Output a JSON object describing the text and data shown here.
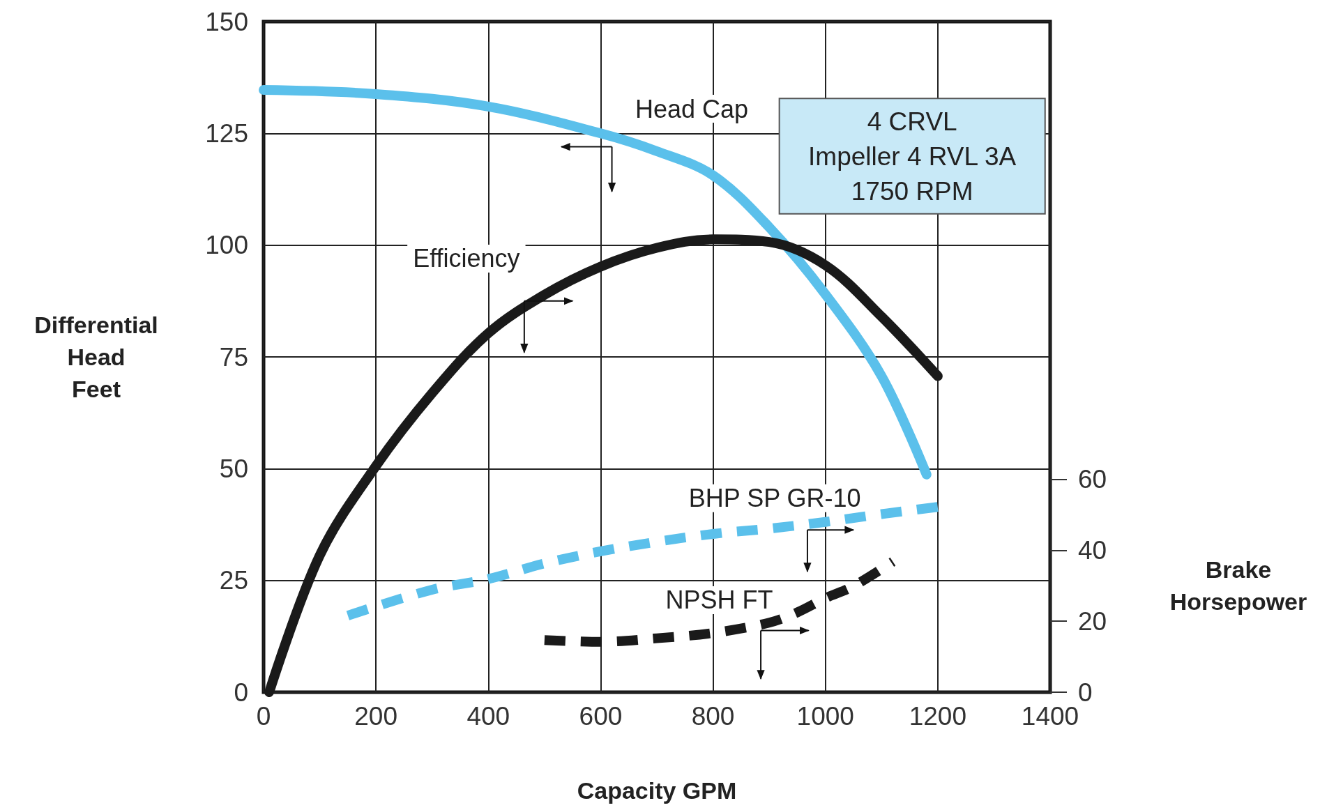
{
  "chart_data": {
    "type": "line",
    "xlabel": "Capacity GPM",
    "ylabel": "Differential\nHead\nFeet",
    "y2label": "Brake\nHorsepower",
    "xlim": [
      0,
      1400
    ],
    "xticks": [
      0,
      200,
      400,
      600,
      800,
      1000,
      1200,
      1400
    ],
    "ylim": [
      0,
      150
    ],
    "yticks": [
      0,
      25,
      50,
      75,
      100,
      125,
      150
    ],
    "y2lim": [
      0,
      189
    ],
    "y2ticks": [
      0,
      20,
      40,
      60
    ],
    "grid": true,
    "legend": false,
    "marker": "none",
    "annotations": [
      "4 CRVL\nImpeller 4 RVL 3A\n1750 RPM"
    ],
    "series": [
      {
        "name": "Head Cap",
        "color": "#5bc0eb",
        "line_style": "solid",
        "x": [
          0,
          200,
          400,
          600,
          700,
          800,
          900,
          1000,
          1100,
          1180
        ],
        "values": [
          134.7,
          133.8,
          131,
          125,
          121,
          115.6,
          104,
          89,
          70.7,
          48.7
        ]
      },
      {
        "name": "Efficiency",
        "color": "#1a1a1a",
        "line_style": "solid",
        "x": [
          10,
          100,
          200,
          300,
          400,
          500,
          600,
          700,
          800,
          900,
          1000,
          1100,
          1200
        ],
        "values": [
          0,
          30.6,
          50.6,
          66.9,
          80.3,
          88.9,
          95.2,
          99.4,
          101.3,
          100.7,
          95.5,
          84,
          70.7
        ]
      },
      {
        "name": "BHP SP GR-10",
        "color": "#5bc0eb",
        "line_style": "dashed",
        "axis": "y2",
        "x": [
          150,
          300,
          400,
          500,
          600,
          700,
          800,
          900,
          1000,
          1100,
          1200
        ],
        "values": [
          21.6,
          28.9,
          31.9,
          36.3,
          39.7,
          42.4,
          44.6,
          46.1,
          48,
          50.2,
          52.2
        ]
      },
      {
        "name": "NPSH FT",
        "color": "#1a1a1a",
        "line_style": "dashed",
        "axis": "y2",
        "x": [
          500,
          600,
          700,
          800,
          900,
          950,
          1000,
          1050,
          1120
        ],
        "values": [
          14.7,
          14.2,
          15.2,
          16.7,
          19.6,
          22.5,
          26.5,
          29.9,
          36.8
        ]
      }
    ]
  }
}
